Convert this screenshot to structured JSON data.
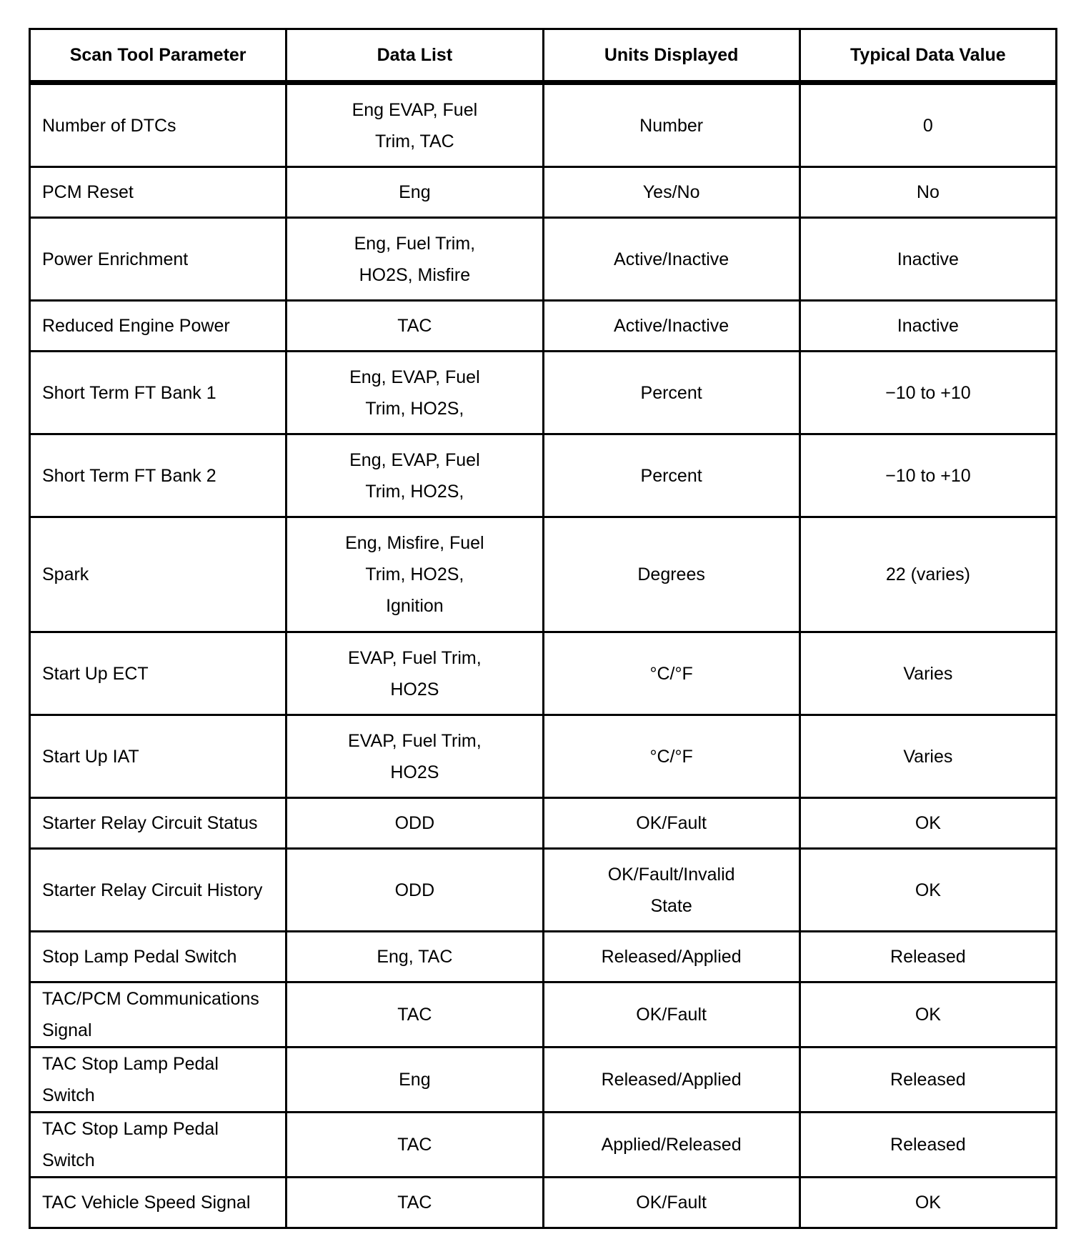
{
  "columns": [
    "Scan Tool Parameter",
    "Data List",
    "Units Displayed",
    "Typical Data Value"
  ],
  "rows": [
    {
      "parameter": "Number of DTCs",
      "data_list": [
        "Eng EVAP, Fuel",
        "Trim, TAC"
      ],
      "units": [
        "Number"
      ],
      "value": "0"
    },
    {
      "parameter": "PCM Reset",
      "data_list": [
        "Eng"
      ],
      "units": [
        "Yes/No"
      ],
      "value": "No"
    },
    {
      "parameter": "Power Enrichment",
      "data_list": [
        "Eng, Fuel Trim,",
        "HO2S, Misfire"
      ],
      "units": [
        "Active/Inactive"
      ],
      "value": "Inactive"
    },
    {
      "parameter": "Reduced Engine Power",
      "data_list": [
        "TAC"
      ],
      "units": [
        "Active/Inactive"
      ],
      "value": "Inactive"
    },
    {
      "parameter": "Short Term FT Bank 1",
      "data_list": [
        "Eng, EVAP, Fuel",
        "Trim, HO2S,"
      ],
      "units": [
        "Percent"
      ],
      "value": "−10 to +10"
    },
    {
      "parameter": "Short Term FT Bank 2",
      "data_list": [
        "Eng, EVAP, Fuel",
        "Trim, HO2S,"
      ],
      "units": [
        "Percent"
      ],
      "value": "−10 to +10"
    },
    {
      "parameter": "Spark",
      "data_list": [
        "Eng, Misfire, Fuel",
        "Trim, HO2S,",
        "Ignition"
      ],
      "units": [
        "Degrees"
      ],
      "value": "22 (varies)"
    },
    {
      "parameter": "Start Up ECT",
      "data_list": [
        "EVAP, Fuel Trim,",
        "HO2S"
      ],
      "units": [
        "°C/°F"
      ],
      "value": "Varies"
    },
    {
      "parameter": "Start Up IAT",
      "data_list": [
        "EVAP, Fuel Trim,",
        "HO2S"
      ],
      "units": [
        "°C/°F"
      ],
      "value": "Varies"
    },
    {
      "parameter": "Starter Relay Circuit Status",
      "data_list": [
        "ODD"
      ],
      "units": [
        "OK/Fault"
      ],
      "value": "OK"
    },
    {
      "parameter": "Starter Relay Circuit History",
      "data_list": [
        "ODD"
      ],
      "units": [
        "OK/Fault/Invalid",
        "State"
      ],
      "value": "OK"
    },
    {
      "parameter": "Stop Lamp Pedal Switch",
      "data_list": [
        "Eng, TAC"
      ],
      "units": [
        "Released/Applied"
      ],
      "value": "Released"
    },
    {
      "parameter": "TAC/PCM Communications Signal",
      "data_list": [
        "TAC"
      ],
      "units": [
        "OK/Fault"
      ],
      "value": "OK"
    },
    {
      "parameter": "TAC Stop Lamp Pedal Switch",
      "data_list": [
        "Eng"
      ],
      "units": [
        "Released/Applied"
      ],
      "value": "Released"
    },
    {
      "parameter": "TAC Stop Lamp Pedal Switch",
      "data_list": [
        "TAC"
      ],
      "units": [
        "Applied/Released"
      ],
      "value": "Released"
    },
    {
      "parameter": "TAC Vehicle Speed Signal",
      "data_list": [
        "TAC"
      ],
      "units": [
        "OK/Fault"
      ],
      "value": "OK"
    }
  ]
}
